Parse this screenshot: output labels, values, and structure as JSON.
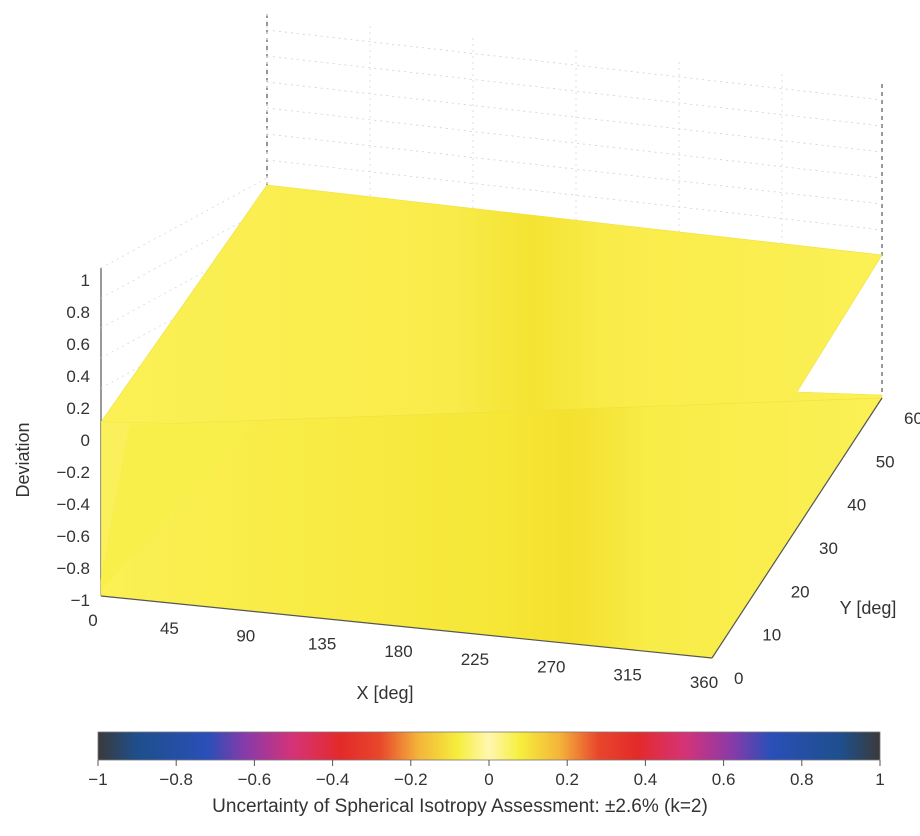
{
  "chart_data": {
    "type": "surface3d",
    "xlabel": "X [deg]",
    "ylabel": "Y [deg]",
    "zlabel": "Deviation",
    "x_ticks": [
      "0",
      "45",
      "90",
      "135",
      "180",
      "225",
      "270",
      "315",
      "360"
    ],
    "y_ticks": [
      "0",
      "10",
      "20",
      "30",
      "40",
      "50",
      "60"
    ],
    "z_ticks": [
      "−1",
      "−0.8",
      "−0.6",
      "−0.4",
      "−0.2",
      "0",
      "0.2",
      "0.4",
      "0.6",
      "0.8",
      "1"
    ],
    "xlim": [
      0,
      360
    ],
    "ylim": [
      0,
      60
    ],
    "zlim": [
      -1,
      1
    ],
    "grid": true,
    "colormap": {
      "ticks": [
        "−1",
        "−0.8",
        "−0.6",
        "−0.4",
        "−0.2",
        "0",
        "0.2",
        "0.4",
        "0.6",
        "0.8",
        "1"
      ],
      "range": [
        -1,
        1
      ],
      "stops": [
        {
          "v": -1.0,
          "color": "#3a3a3a"
        },
        {
          "v": -0.9,
          "color": "#1e4f8c"
        },
        {
          "v": -0.72,
          "color": "#2a4fb8"
        },
        {
          "v": -0.62,
          "color": "#8a3aa8"
        },
        {
          "v": -0.5,
          "color": "#d63377"
        },
        {
          "v": -0.38,
          "color": "#e32a2a"
        },
        {
          "v": -0.28,
          "color": "#e8462c"
        },
        {
          "v": -0.18,
          "color": "#f4b43a"
        },
        {
          "v": -0.08,
          "color": "#f6ee3c"
        },
        {
          "v": 0.0,
          "color": "#fff7b0"
        },
        {
          "v": 0.08,
          "color": "#f6ee3c"
        },
        {
          "v": 0.18,
          "color": "#f4b43a"
        },
        {
          "v": 0.28,
          "color": "#e8462c"
        },
        {
          "v": 0.38,
          "color": "#e32a2a"
        },
        {
          "v": 0.5,
          "color": "#d63377"
        },
        {
          "v": 0.62,
          "color": "#8a3aa8"
        },
        {
          "v": 0.72,
          "color": "#2a4fb8"
        },
        {
          "v": 0.9,
          "color": "#1e4f8c"
        },
        {
          "v": 1.0,
          "color": "#3a3a3a"
        }
      ]
    },
    "surfaces": [
      {
        "name": "",
        "deviation_approx": 0.18,
        "color": "#f8ef4a"
      },
      {
        "name": "",
        "deviation_approx": -0.18,
        "color": "#f8ef4a"
      }
    ],
    "caption": "Uncertainty of Spherical Isotropy Assessment: ±2.6% (k=2)"
  }
}
